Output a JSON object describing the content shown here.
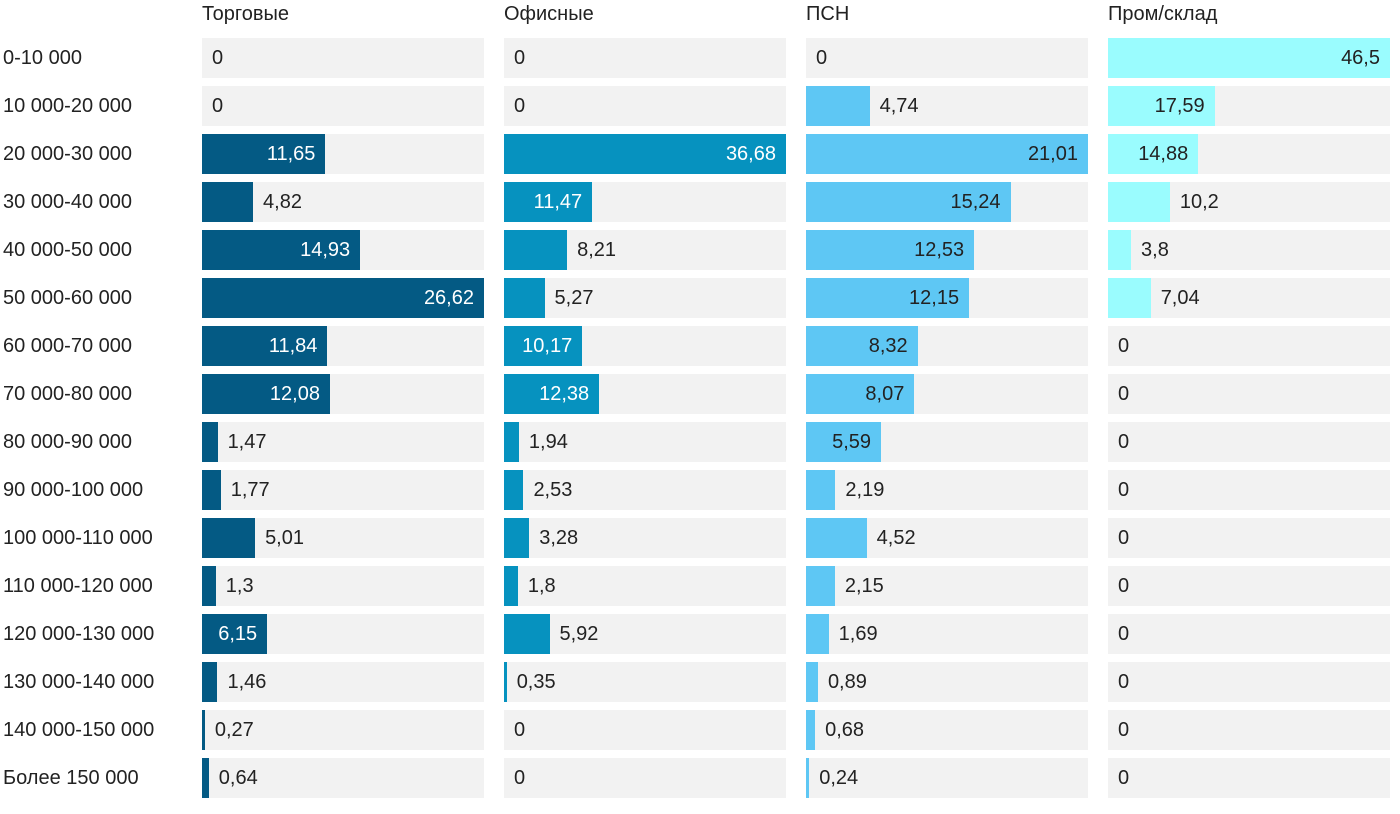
{
  "chart_data": {
    "type": "bar",
    "orientation": "horizontal",
    "layout": "small-multiples",
    "categories": [
      "0-10 000",
      "10 000-20 000",
      "20 000-30 000",
      "30 000-40 000",
      "40 000-50 000",
      "50 000-60 000",
      "60 000-70 000",
      "70 000-80 000",
      "80 000-90 000",
      "90 000-100 000",
      "100 000-110 000",
      "110 000-120 000",
      "120 000-130 000",
      "130 000-140 000",
      "140 000-150 000",
      "Более 150 000"
    ],
    "series": [
      {
        "name": "Торговые",
        "color": "#045a84",
        "label_color": "#ffffff",
        "labels": [
          "0",
          "0",
          "11,65",
          "4,82",
          "14,93",
          "26,62",
          "11,84",
          "12,08",
          "1,47",
          "1,77",
          "5,01",
          "1,3",
          "6,15",
          "1,46",
          "0,27",
          "0,64"
        ],
        "values": [
          0,
          0,
          11.65,
          4.82,
          14.93,
          26.62,
          11.84,
          12.08,
          1.47,
          1.77,
          5.01,
          1.3,
          6.15,
          1.46,
          0.27,
          0.64
        ]
      },
      {
        "name": "Офисные",
        "color": "#0692bf",
        "label_color": "#ffffff",
        "labels": [
          "0",
          "0",
          "36,68",
          "11,47",
          "8,21",
          "5,27",
          "10,17",
          "12,38",
          "1,94",
          "2,53",
          "3,28",
          "1,8",
          "5,92",
          "0,35",
          "0",
          "0"
        ],
        "values": [
          0,
          0,
          36.68,
          11.47,
          8.21,
          5.27,
          10.17,
          12.38,
          1.94,
          2.53,
          3.28,
          1.8,
          5.92,
          0.35,
          0,
          0
        ]
      },
      {
        "name": "ПСН",
        "color": "#5ec7f4",
        "label_color": "#222222",
        "labels": [
          "0",
          "4,74",
          "21,01",
          "15,24",
          "12,53",
          "12,15",
          "8,32",
          "8,07",
          "5,59",
          "2,19",
          "4,52",
          "2,15",
          "1,69",
          "0,89",
          "0,68",
          "0,24"
        ],
        "values": [
          0,
          4.74,
          21.01,
          15.24,
          12.53,
          12.15,
          8.32,
          8.07,
          5.59,
          2.19,
          4.52,
          2.15,
          1.69,
          0.89,
          0.68,
          0.24
        ]
      },
      {
        "name": "Пром/склад",
        "color": "#9afcfe",
        "label_color": "#222222",
        "labels": [
          "46,5",
          "17,59",
          "14,88",
          "10,2",
          "3,8",
          "7,04",
          "0",
          "0",
          "0",
          "0",
          "0",
          "0",
          "0",
          "0",
          "0",
          "0"
        ],
        "values": [
          46.5,
          17.59,
          14.88,
          10.2,
          3.8,
          7.04,
          0,
          0,
          0,
          0,
          0,
          0,
          0,
          0,
          0,
          0
        ]
      }
    ],
    "track_color": "#f2f2f2",
    "outside_label_color": "#222222",
    "title": "",
    "xlabel": "",
    "ylabel": "",
    "grid": false,
    "legend": "none"
  }
}
